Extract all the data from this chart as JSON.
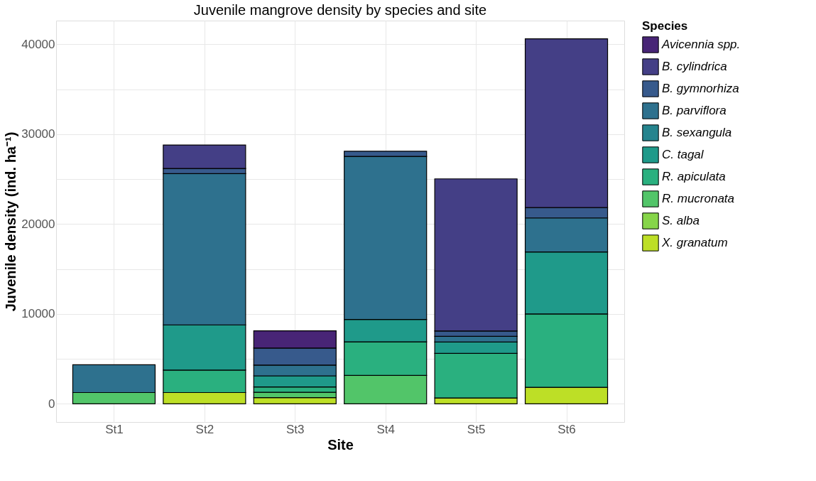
{
  "chart_data": {
    "type": "bar",
    "stacked": true,
    "title": "Juvenile mangrove density by species and site",
    "xlabel": "Site",
    "ylabel": "Juvenile density (ind. ha⁻¹)",
    "legend_title": "Species",
    "legend": "right",
    "grid": true,
    "categories": [
      "St1",
      "St2",
      "St3",
      "St4",
      "St5",
      "St6"
    ],
    "ylim": [
      -2030,
      42640
    ],
    "yticks": [
      0,
      {
        "value": 5000,
        "label": null
      },
      10000,
      {
        "value": 15000,
        "label": null
      },
      20000,
      {
        "value": 25000,
        "label": null
      },
      30000,
      {
        "value": 35000,
        "label": null
      },
      40000
    ],
    "series": [
      {
        "name": "X. granatum",
        "color": "#bddf26",
        "values": [
          null,
          1250,
          690,
          null,
          650,
          1840
        ]
      },
      {
        "name": "S. alba",
        "color": "#86d549",
        "values": [
          null,
          null,
          null,
          null,
          null,
          null
        ]
      },
      {
        "name": "R. mucronata",
        "color": "#52c569",
        "values": [
          1250,
          null,
          590,
          3160,
          null,
          null
        ]
      },
      {
        "name": "R. apiculata",
        "color": "#2ab07f",
        "values": [
          null,
          2500,
          590,
          3740,
          4960,
          8160
        ]
      },
      {
        "name": "C. tagal",
        "color": "#1f9a8a",
        "values": [
          null,
          5030,
          1240,
          2490,
          1270,
          6900
        ]
      },
      {
        "name": "B. sexangula",
        "color": "#25848e",
        "values": [
          null,
          null,
          null,
          null,
          null,
          null
        ]
      },
      {
        "name": "B. parviflora",
        "color": "#2e718e",
        "values": [
          3090,
          16830,
          1200,
          18140,
          630,
          3780
        ]
      },
      {
        "name": "B. gymnorhiza",
        "color": "#375a8c",
        "values": [
          null,
          580,
          1890,
          580,
          590,
          1150
        ]
      },
      {
        "name": "B. cylindrica",
        "color": "#443f86",
        "values": [
          null,
          2610,
          null,
          null,
          16930,
          18780
        ]
      },
      {
        "name": "Avicennia spp.",
        "color": "#482576",
        "values": [
          null,
          null,
          1920,
          null,
          null,
          null
        ]
      }
    ]
  }
}
